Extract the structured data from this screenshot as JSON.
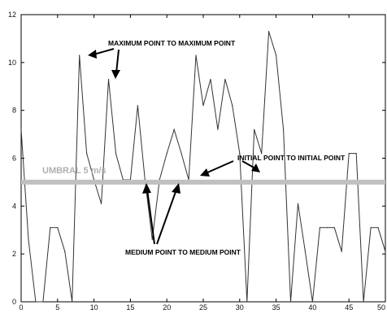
{
  "chart_data": {
    "type": "line",
    "title": "",
    "xlabel": "",
    "ylabel": "",
    "xlim": [
      0,
      50
    ],
    "ylim": [
      0,
      12
    ],
    "xticks": [
      0,
      5,
      10,
      15,
      20,
      25,
      30,
      35,
      40,
      45,
      50
    ],
    "yticks": [
      0,
      2,
      4,
      6,
      8,
      10,
      12
    ],
    "grid": false,
    "series": [
      {
        "x": [
          0,
          1,
          2,
          3,
          4,
          5,
          6,
          7,
          8,
          9,
          10,
          11,
          12,
          13,
          14,
          15,
          16,
          17,
          18,
          19,
          20,
          21,
          22,
          23,
          24,
          25,
          26,
          27,
          28,
          29,
          30,
          31,
          32,
          33,
          34,
          35,
          36,
          37,
          38,
          39,
          40,
          41,
          42,
          43,
          44,
          45,
          46,
          47,
          48,
          49,
          50
        ],
        "values": [
          7.2,
          2.6,
          0,
          0,
          3.1,
          3.1,
          2.1,
          0,
          10.3,
          6.2,
          5.1,
          4.1,
          9.3,
          6.2,
          5.1,
          5.1,
          8.2,
          5.1,
          2.6,
          5.1,
          6.2,
          7.2,
          6.2,
          5.1,
          10.3,
          8.2,
          9.3,
          7.2,
          9.3,
          8.2,
          6.2,
          0,
          7.2,
          6.2,
          11.3,
          10.3,
          7.2,
          0,
          4.1,
          2.1,
          0,
          3.1,
          3.1,
          3.1,
          2.1,
          6.2,
          6.2,
          0,
          3.1,
          3.1,
          2.1
        ],
        "color": "#333333"
      }
    ],
    "threshold": {
      "value": 5,
      "label": "UMBRAL 5 m/s",
      "color": "#c0c0c0"
    },
    "annotations": [
      {
        "text": "MAXIMUM POINT TO MAXIMUM POINT"
      },
      {
        "text": "INITIAL POINT TO INITIAL POINT"
      },
      {
        "text": "MEDIUM POINT TO MEDIUM POINT"
      }
    ]
  }
}
